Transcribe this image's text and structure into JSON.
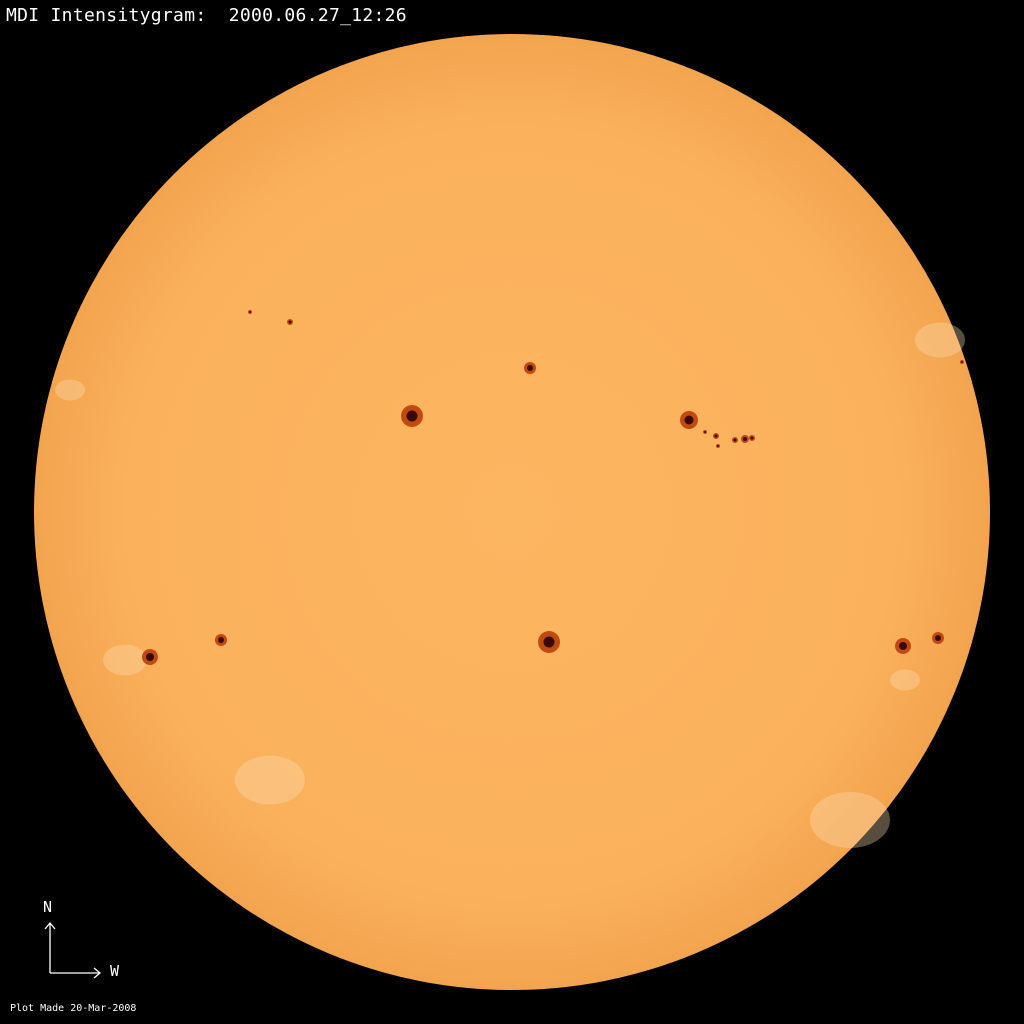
{
  "title": "MDI Intensitygram:  2000.06.27_12:26",
  "compass": {
    "north_label": "N",
    "west_label": "W"
  },
  "footer": "Plot Made 20-Mar-2008",
  "colors": {
    "background": "#000000",
    "disk": "#fbb25e",
    "limb": "#f0a04a",
    "sunspot_umbra": "#3a0a00",
    "sunspot_penumbra": "#c04a10",
    "faculae": "#fde0b8",
    "text": "#ffffff"
  }
}
